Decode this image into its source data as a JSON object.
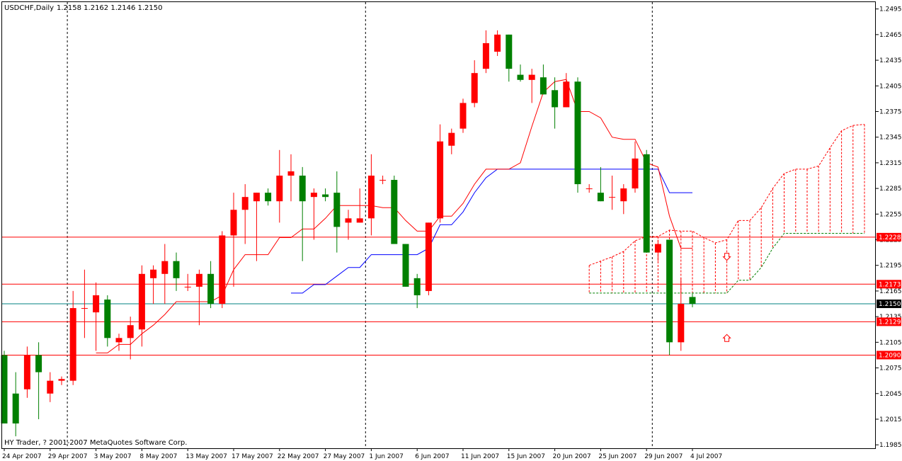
{
  "header": {
    "symbol": "USDCHF,Daily",
    "ohlc": "1.2158 1.2162 1.2146 1.2150"
  },
  "footer": {
    "copyright": "HY Trader, ? 2001-2007 MetaQuotes Software Corp."
  },
  "colors": {
    "bull": "#ff0000",
    "bear": "#008000",
    "tenkan": "#ff0000",
    "kijun": "#0000ff",
    "span_a": "#ff0000",
    "span_b": "#008000",
    "hline": "#ff0000",
    "price_line": "#008080",
    "tag_bg": "#ff0000",
    "current_tag_bg": "#000000"
  },
  "chart_data": {
    "type": "candlestick",
    "symbol": "USDCHF",
    "timeframe": "Daily",
    "y_range": [
      1.1981,
      1.2503
    ],
    "y_ticks": [
      "1.2495",
      "1.2465",
      "1.2435",
      "1.2405",
      "1.2375",
      "1.2345",
      "1.2315",
      "1.2285",
      "1.2255",
      "1.2225",
      "1.2195",
      "1.2165",
      "1.2135",
      "1.2105",
      "1.2075",
      "1.2045",
      "1.2015",
      "1.1985"
    ],
    "x_labels": [
      {
        "label": "24 Apr 2007",
        "bar": 0
      },
      {
        "label": "29 Apr 2007",
        "bar": 4
      },
      {
        "label": "3 May 2007",
        "bar": 8
      },
      {
        "label": "8 May 2007",
        "bar": 12
      },
      {
        "label": "13 May 2007",
        "bar": 16
      },
      {
        "label": "17 May 2007",
        "bar": 20
      },
      {
        "label": "22 May 2007",
        "bar": 24
      },
      {
        "label": "27 May 2007",
        "bar": 28
      },
      {
        "label": "1 Jun 2007",
        "bar": 32
      },
      {
        "label": "6 Jun 2007",
        "bar": 36
      },
      {
        "label": "11 Jun 2007",
        "bar": 40
      },
      {
        "label": "15 Jun 2007",
        "bar": 44
      },
      {
        "label": "20 Jun 2007",
        "bar": 48
      },
      {
        "label": "25 Jun 2007",
        "bar": 52
      },
      {
        "label": "29 Jun 2007",
        "bar": 56
      },
      {
        "label": "4 Jul 2007",
        "bar": 60
      }
    ],
    "period_separators": [
      6,
      32,
      57
    ],
    "candles": [
      {
        "o": 1.209,
        "h": 1.2095,
        "l": 1.201,
        "c": 1.201
      },
      {
        "o": 1.2045,
        "h": 1.207,
        "l": 1.1995,
        "c": 1.201
      },
      {
        "o": 1.205,
        "h": 1.21,
        "l": 1.204,
        "c": 1.209
      },
      {
        "o": 1.209,
        "h": 1.2105,
        "l": 1.2015,
        "c": 1.207
      },
      {
        "o": 1.2045,
        "h": 1.207,
        "l": 1.2035,
        "c": 1.206
      },
      {
        "o": 1.206,
        "h": 1.2065,
        "l": 1.2055,
        "c": 1.2062
      },
      {
        "o": 1.206,
        "h": 1.2165,
        "l": 1.2055,
        "c": 1.2145
      },
      {
        "o": 1.2145,
        "h": 1.219,
        "l": 1.211,
        "c": 1.2145
      },
      {
        "o": 1.214,
        "h": 1.2175,
        "l": 1.2095,
        "c": 1.216
      },
      {
        "o": 1.2155,
        "h": 1.216,
        "l": 1.21,
        "c": 1.211
      },
      {
        "o": 1.2105,
        "h": 1.2115,
        "l": 1.2095,
        "c": 1.211
      },
      {
        "o": 1.211,
        "h": 1.2135,
        "l": 1.2085,
        "c": 1.2125
      },
      {
        "o": 1.212,
        "h": 1.2195,
        "l": 1.21,
        "c": 1.2185
      },
      {
        "o": 1.218,
        "h": 1.2195,
        "l": 1.215,
        "c": 1.219
      },
      {
        "o": 1.2185,
        "h": 1.222,
        "l": 1.215,
        "c": 1.22
      },
      {
        "o": 1.22,
        "h": 1.221,
        "l": 1.2165,
        "c": 1.218
      },
      {
        "o": 1.217,
        "h": 1.2185,
        "l": 1.2165,
        "c": 1.217
      },
      {
        "o": 1.217,
        "h": 1.219,
        "l": 1.2125,
        "c": 1.2185
      },
      {
        "o": 1.2185,
        "h": 1.22,
        "l": 1.2145,
        "c": 1.215
      },
      {
        "o": 1.215,
        "h": 1.2235,
        "l": 1.2145,
        "c": 1.223
      },
      {
        "o": 1.223,
        "h": 1.228,
        "l": 1.217,
        "c": 1.226
      },
      {
        "o": 1.226,
        "h": 1.229,
        "l": 1.222,
        "c": 1.2275
      },
      {
        "o": 1.227,
        "h": 1.228,
        "l": 1.22,
        "c": 1.228
      },
      {
        "o": 1.228,
        "h": 1.2285,
        "l": 1.2265,
        "c": 1.227
      },
      {
        "o": 1.227,
        "h": 1.233,
        "l": 1.2245,
        "c": 1.23
      },
      {
        "o": 1.23,
        "h": 1.2325,
        "l": 1.227,
        "c": 1.2305
      },
      {
        "o": 1.23,
        "h": 1.231,
        "l": 1.22,
        "c": 1.227
      },
      {
        "o": 1.2275,
        "h": 1.2285,
        "l": 1.2225,
        "c": 1.228
      },
      {
        "o": 1.2278,
        "h": 1.2285,
        "l": 1.227,
        "c": 1.2275
      },
      {
        "o": 1.228,
        "h": 1.2305,
        "l": 1.221,
        "c": 1.224
      },
      {
        "o": 1.2245,
        "h": 1.226,
        "l": 1.2225,
        "c": 1.225
      },
      {
        "o": 1.2245,
        "h": 1.2285,
        "l": 1.2245,
        "c": 1.225
      },
      {
        "o": 1.225,
        "h": 1.2325,
        "l": 1.223,
        "c": 1.23
      },
      {
        "o": 1.2295,
        "h": 1.23,
        "l": 1.229,
        "c": 1.2295
      },
      {
        "o": 1.2295,
        "h": 1.23,
        "l": 1.2225,
        "c": 1.222
      },
      {
        "o": 1.222,
        "h": 1.222,
        "l": 1.217,
        "c": 1.217
      },
      {
        "o": 1.218,
        "h": 1.2185,
        "l": 1.2145,
        "c": 1.216
      },
      {
        "o": 1.2165,
        "h": 1.2245,
        "l": 1.216,
        "c": 1.2245
      },
      {
        "o": 1.225,
        "h": 1.236,
        "l": 1.2245,
        "c": 1.234
      },
      {
        "o": 1.2335,
        "h": 1.2355,
        "l": 1.2325,
        "c": 1.235
      },
      {
        "o": 1.2355,
        "h": 1.239,
        "l": 1.235,
        "c": 1.2385
      },
      {
        "o": 1.2385,
        "h": 1.2435,
        "l": 1.238,
        "c": 1.242
      },
      {
        "o": 1.2425,
        "h": 1.247,
        "l": 1.242,
        "c": 1.2455
      },
      {
        "o": 1.2445,
        "h": 1.247,
        "l": 1.244,
        "c": 1.2465
      },
      {
        "o": 1.2465,
        "h": 1.2465,
        "l": 1.241,
        "c": 1.2425
      },
      {
        "o": 1.2418,
        "h": 1.243,
        "l": 1.241,
        "c": 1.2412
      },
      {
        "o": 1.2412,
        "h": 1.2425,
        "l": 1.2385,
        "c": 1.2418
      },
      {
        "o": 1.2415,
        "h": 1.243,
        "l": 1.2395,
        "c": 1.2395
      },
      {
        "o": 1.24,
        "h": 1.2415,
        "l": 1.2355,
        "c": 1.238
      },
      {
        "o": 1.238,
        "h": 1.242,
        "l": 1.238,
        "c": 1.241
      },
      {
        "o": 1.241,
        "h": 1.2415,
        "l": 1.228,
        "c": 1.229
      },
      {
        "o": 1.2285,
        "h": 1.229,
        "l": 1.228,
        "c": 1.2285
      },
      {
        "o": 1.228,
        "h": 1.231,
        "l": 1.227,
        "c": 1.227
      },
      {
        "o": 1.2275,
        "h": 1.23,
        "l": 1.226,
        "c": 1.2275
      },
      {
        "o": 1.227,
        "h": 1.229,
        "l": 1.2255,
        "c": 1.2285
      },
      {
        "o": 1.2285,
        "h": 1.234,
        "l": 1.228,
        "c": 1.232
      },
      {
        "o": 1.2325,
        "h": 1.233,
        "l": 1.221,
        "c": 1.221
      },
      {
        "o": 1.221,
        "h": 1.2225,
        "l": 1.22,
        "c": 1.222
      },
      {
        "o": 1.2225,
        "h": 1.2225,
        "l": 1.209,
        "c": 1.2105
      },
      {
        "o": 1.2105,
        "h": 1.218,
        "l": 1.2095,
        "c": 1.215
      },
      {
        "o": 1.2158,
        "h": 1.2162,
        "l": 1.2146,
        "c": 1.215
      }
    ],
    "horizontal_levels": [
      1.2228,
      1.2173,
      1.2129,
      1.209
    ],
    "current_price": 1.215,
    "current_price_label": "1.2150",
    "level_labels": [
      "1.2228",
      "1.2173",
      "1.2129",
      "1.2090"
    ],
    "arrows": [
      {
        "bar": 63,
        "price": 1.2205,
        "dir": "down"
      },
      {
        "bar": 63,
        "price": 1.211,
        "dir": "up"
      }
    ]
  }
}
